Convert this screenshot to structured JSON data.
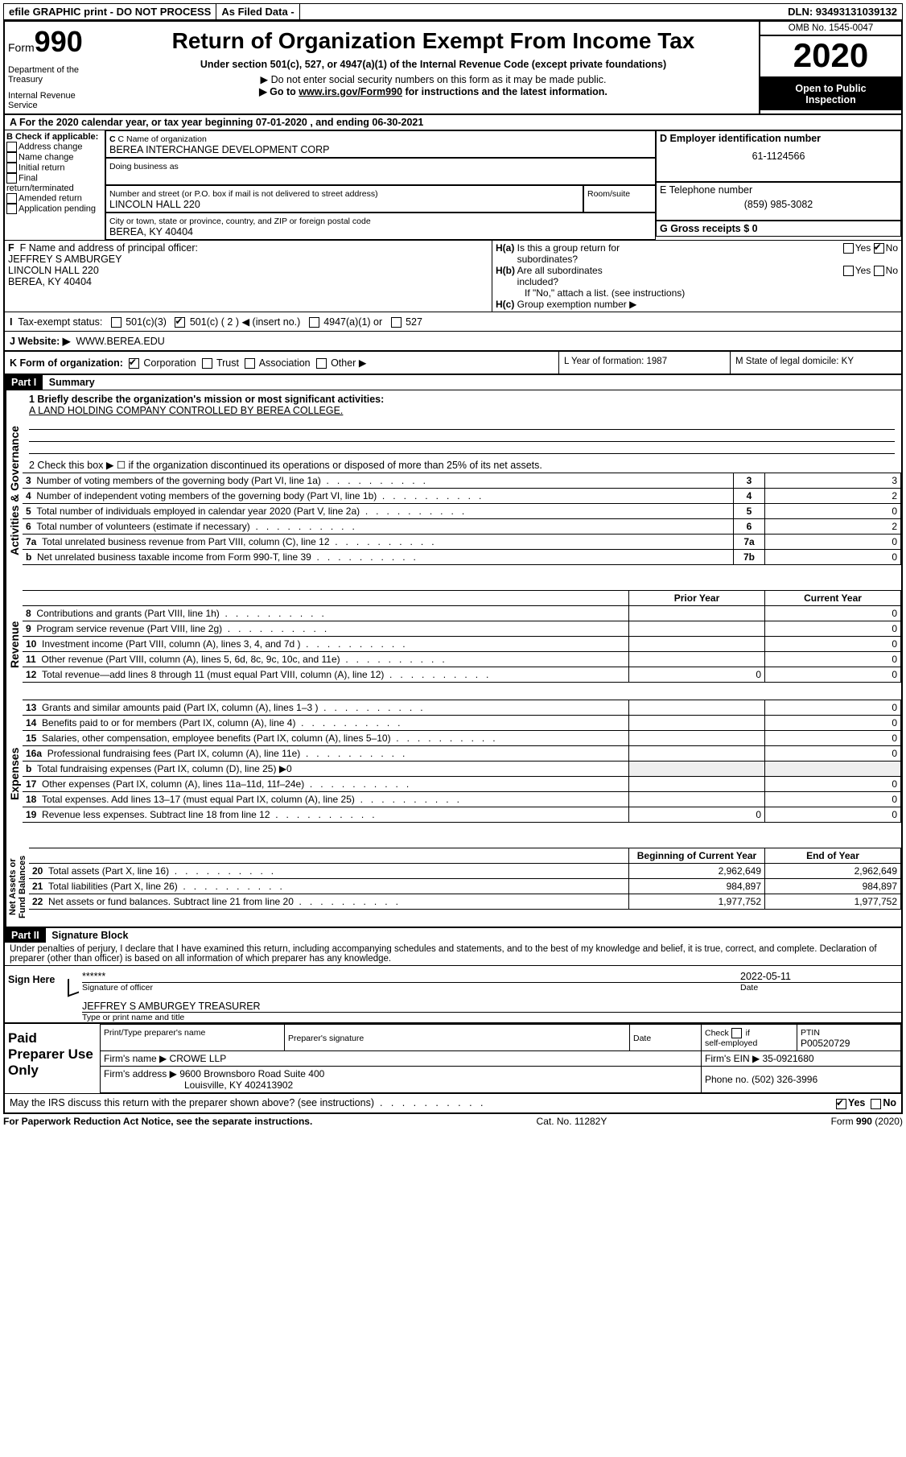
{
  "top": {
    "efile": "efile GRAPHIC print - DO NOT PROCESS",
    "asfiled": "As Filed Data - ",
    "dln": "DLN: 93493131039132"
  },
  "header": {
    "form_prefix": "Form",
    "form_num": "990",
    "dept1": "Department of the Treasury",
    "dept2": "Internal Revenue Service",
    "title": "Return of Organization Exempt From Income Tax",
    "subtitle": "Under section 501(c), 527, or 4947(a)(1) of the Internal Revenue Code (except private foundations)",
    "noenter": "▶ Do not enter social security numbers on this form as it may be made public.",
    "goto_pre": "▶ Go to ",
    "goto_link": "www.irs.gov/Form990",
    "goto_post": " for instructions and the latest information.",
    "omb": "OMB No. 1545-0047",
    "year": "2020",
    "inspect1": "Open to Public",
    "inspect2": "Inspection"
  },
  "A": {
    "text": "A   For the 2020 calendar year, or tax year beginning 07-01-2020   , and ending 06-30-2021"
  },
  "B": {
    "header": "B Check if applicable:",
    "opts": [
      "Address change",
      "Name change",
      "Initial return",
      "Final return/terminated",
      "Amended return",
      "Application pending"
    ]
  },
  "C": {
    "label": "C Name of organization",
    "value": "BEREA INTERCHANGE DEVELOPMENT CORP",
    "dba_label": "Doing business as",
    "street_label": "Number and street (or P.O. box if mail is not delivered to street address)",
    "room_label": "Room/suite",
    "street": "LINCOLN HALL 220",
    "city_label": "City or town, state or province, country, and ZIP or foreign postal code",
    "city": "BEREA, KY  40404"
  },
  "D": {
    "label": "D Employer identification number",
    "value": "61-1124566"
  },
  "E": {
    "label": "E Telephone number",
    "value": "(859) 985-3082"
  },
  "G": {
    "label": "G Gross receipts $ 0"
  },
  "F": {
    "label": "F   Name and address of principal officer:",
    "l1": "JEFFREY S AMBURGEY",
    "l2": "LINCOLN HALL 220",
    "l3": "BEREA, KY  40404"
  },
  "H": {
    "a": "H(a)  Is this a group return for",
    "a2": "subordinates?",
    "b": "H(b)  Are all subordinates included?",
    "b2": "If \"No,\" attach a list. (see instructions)",
    "c": "H(c)  Group exemption number ▶",
    "yes": "Yes",
    "no": "No"
  },
  "I": {
    "label": "I   Tax-exempt status:",
    "o1": "501(c)(3)",
    "o2": "501(c) ( 2 ) ◀ (insert no.)",
    "o3": "4947(a)(1) or",
    "o4": "527"
  },
  "J": {
    "label": "J   Website: ▶",
    "value": "WWW.BEREA.EDU"
  },
  "K": {
    "label": "K Form of organization:",
    "o1": "Corporation",
    "o2": "Trust",
    "o3": "Association",
    "o4": "Other ▶"
  },
  "L": {
    "text": "L Year of formation: 1987"
  },
  "M": {
    "text": "M State of legal domicile: KY"
  },
  "partI": {
    "num": "Part I",
    "title": "Summary"
  },
  "summary": {
    "s1_label": "1 Briefly describe the organization's mission or most significant activities:",
    "s1_val": "A LAND HOLDING COMPANY CONTROLLED BY BEREA COLLEGE.",
    "s2": "2   Check this box ▶ ☐  if the organization discontinued its operations or disposed of more than 25% of its net assets.",
    "rows_gov": [
      {
        "n": "3",
        "t": "Number of voting members of the governing body (Part VI, line 1a)",
        "k": "3",
        "v": "3"
      },
      {
        "n": "4",
        "t": "Number of independent voting members of the governing body (Part VI, line 1b)",
        "k": "4",
        "v": "2"
      },
      {
        "n": "5",
        "t": "Total number of individuals employed in calendar year 2020 (Part V, line 2a)",
        "k": "5",
        "v": "0"
      },
      {
        "n": "6",
        "t": "Total number of volunteers (estimate if necessary)",
        "k": "6",
        "v": "2"
      },
      {
        "n": "7a",
        "t": "Total unrelated business revenue from Part VIII, column (C), line 12",
        "k": "7a",
        "v": "0"
      },
      {
        "n": "b",
        "t": "Net unrelated business taxable income from Form 990-T, line 39",
        "k": "7b",
        "v": "0"
      }
    ],
    "col_prior": "Prior Year",
    "col_curr": "Current Year",
    "rows_rev": [
      {
        "n": "8",
        "t": "Contributions and grants (Part VIII, line 1h)",
        "p": "",
        "c": "0"
      },
      {
        "n": "9",
        "t": "Program service revenue (Part VIII, line 2g)",
        "p": "",
        "c": "0"
      },
      {
        "n": "10",
        "t": "Investment income (Part VIII, column (A), lines 3, 4, and 7d )",
        "p": "",
        "c": "0"
      },
      {
        "n": "11",
        "t": "Other revenue (Part VIII, column (A), lines 5, 6d, 8c, 9c, 10c, and 11e)",
        "p": "",
        "c": "0"
      },
      {
        "n": "12",
        "t": "Total revenue—add lines 8 through 11 (must equal Part VIII, column (A), line 12)",
        "p": "0",
        "c": "0"
      }
    ],
    "rows_exp": [
      {
        "n": "13",
        "t": "Grants and similar amounts paid (Part IX, column (A), lines 1–3 )",
        "p": "",
        "c": "0"
      },
      {
        "n": "14",
        "t": "Benefits paid to or for members (Part IX, column (A), line 4)",
        "p": "",
        "c": "0"
      },
      {
        "n": "15",
        "t": "Salaries, other compensation, employee benefits (Part IX, column (A), lines 5–10)",
        "p": "",
        "c": "0"
      },
      {
        "n": "16a",
        "t": "Professional fundraising fees (Part IX, column (A), line 11e)",
        "p": "",
        "c": "0"
      },
      {
        "n": "b",
        "t": "Total fundraising expenses (Part IX, column (D), line 25) ▶0",
        "p": null,
        "c": null
      },
      {
        "n": "17",
        "t": "Other expenses (Part IX, column (A), lines 11a–11d, 11f–24e)",
        "p": "",
        "c": "0"
      },
      {
        "n": "18",
        "t": "Total expenses. Add lines 13–17 (must equal Part IX, column (A), line 25)",
        "p": "",
        "c": "0"
      },
      {
        "n": "19",
        "t": "Revenue less expenses. Subtract line 18 from line 12",
        "p": "0",
        "c": "0"
      }
    ],
    "col_boy": "Beginning of Current Year",
    "col_eoy": "End of Year",
    "rows_net": [
      {
        "n": "20",
        "t": "Total assets (Part X, line 16)",
        "p": "2,962,649",
        "c": "2,962,649"
      },
      {
        "n": "21",
        "t": "Total liabilities (Part X, line 26)",
        "p": "984,897",
        "c": "984,897"
      },
      {
        "n": "22",
        "t": "Net assets or fund balances. Subtract line 21 from line 20",
        "p": "1,977,752",
        "c": "1,977,752"
      }
    ]
  },
  "partII": {
    "num": "Part II",
    "title": "Signature Block"
  },
  "sig": {
    "perjury": "Under penalties of perjury, I declare that I have examined this return, including accompanying schedules and statements, and to the best of my knowledge and belief, it is true, correct, and complete. Declaration of preparer (other than officer) is based on all information of which preparer has any knowledge.",
    "sign_here": "Sign Here",
    "stars": "******",
    "date": "2022-05-11",
    "sig_of_officer": "Signature of officer",
    "date_label": "Date",
    "name_title": "JEFFREY S AMBURGEY TREASURER",
    "type_print": "Type or print name and title"
  },
  "preparer": {
    "block": "Paid Preparer Use Only",
    "h1": "Print/Type preparer's name",
    "h2": "Preparer's signature",
    "h3": "Date",
    "h4_pre": "Check ☐ if self-employed",
    "h5": "PTIN",
    "ptin": "P00520729",
    "firm_label": "Firm's name   ▶ ",
    "firm": "CROWE LLP",
    "ein_label": "Firm's EIN ▶ ",
    "ein": "35-0921680",
    "addr_label": "Firm's address ▶ ",
    "addr1": "9600 Brownsboro Road Suite 400",
    "addr2": "Louisville, KY  402413902",
    "phone_label": "Phone no. ",
    "phone": "(502) 326-3996"
  },
  "footer": {
    "discuss": "May the IRS discuss this return with the preparer shown above? (see instructions)",
    "paperwork": "For Paperwork Reduction Act Notice, see the separate instructions.",
    "cat": "Cat. No. 11282Y",
    "form": "Form 990 (2020)",
    "yes": "Yes",
    "no": "No"
  }
}
